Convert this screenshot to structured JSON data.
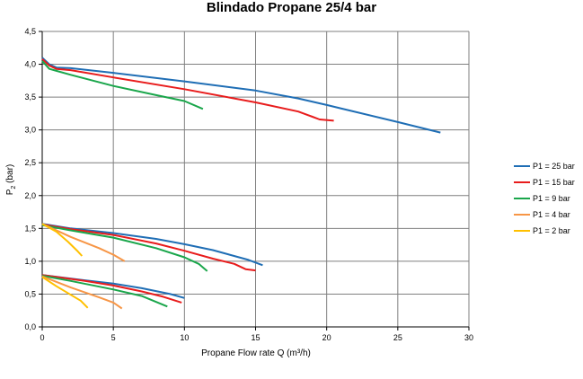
{
  "chart_data": {
    "type": "line",
    "title": "Blindado Propane 25/4 bar",
    "xlabel": "Propane Flow rate Q (m³/h)",
    "ylabel_main": "P",
    "ylabel_sub": "2",
    "ylabel_unit": " (bar)",
    "xlim": [
      0,
      30
    ],
    "ylim": [
      0,
      4.5
    ],
    "x_ticks": [
      0,
      5,
      10,
      15,
      20,
      25,
      30
    ],
    "y_ticks": [
      0,
      0.5,
      1.0,
      1.5,
      2.0,
      2.5,
      3.0,
      3.5,
      4.0,
      4.5
    ],
    "x_tick_labels": [
      "0",
      "5",
      "10",
      "15",
      "20",
      "25",
      "30"
    ],
    "y_tick_labels": [
      "0,0",
      "0,5",
      "1,0",
      "1,5",
      "2,0",
      "2,5",
      "3,0",
      "3,5",
      "4,0",
      "4,5"
    ],
    "grid": true,
    "legend_position": "right",
    "series": [
      {
        "name": "P1 = 25 bar",
        "color": "#1f6eb5",
        "groups": [
          [
            [
              0,
              4.1
            ],
            [
              0.5,
              4.0
            ],
            [
              1,
              3.95
            ],
            [
              2,
              3.94
            ],
            [
              5,
              3.87
            ],
            [
              10,
              3.74
            ],
            [
              15,
              3.6
            ],
            [
              18,
              3.48
            ],
            [
              20,
              3.38
            ],
            [
              25,
              3.12
            ],
            [
              28,
              2.96
            ]
          ],
          [
            [
              0,
              1.57
            ],
            [
              2,
              1.5
            ],
            [
              5,
              1.43
            ],
            [
              8,
              1.34
            ],
            [
              10,
              1.26
            ],
            [
              12,
              1.17
            ],
            [
              14.5,
              1.02
            ],
            [
              15.5,
              0.94
            ]
          ],
          [
            [
              0,
              0.79
            ],
            [
              3,
              0.71
            ],
            [
              5,
              0.66
            ],
            [
              7,
              0.59
            ],
            [
              9,
              0.5
            ],
            [
              10,
              0.44
            ]
          ]
        ]
      },
      {
        "name": "P1 = 15 bar",
        "color": "#e81c1c",
        "groups": [
          [
            [
              0,
              4.08
            ],
            [
              0.5,
              3.98
            ],
            [
              1,
              3.93
            ],
            [
              2,
              3.91
            ],
            [
              5,
              3.8
            ],
            [
              10,
              3.62
            ],
            [
              15,
              3.42
            ],
            [
              18,
              3.28
            ],
            [
              19,
              3.2
            ],
            [
              19.5,
              3.16
            ],
            [
              20.5,
              3.14
            ]
          ],
          [
            [
              0,
              1.56
            ],
            [
              2,
              1.49
            ],
            [
              5,
              1.4
            ],
            [
              8,
              1.27
            ],
            [
              10,
              1.16
            ],
            [
              12,
              1.04
            ],
            [
              13.5,
              0.96
            ],
            [
              14.3,
              0.88
            ],
            [
              15,
              0.86
            ]
          ],
          [
            [
              0,
              0.79
            ],
            [
              3,
              0.7
            ],
            [
              5,
              0.63
            ],
            [
              7,
              0.54
            ],
            [
              8.5,
              0.46
            ],
            [
              9.8,
              0.37
            ]
          ]
        ]
      },
      {
        "name": "P1 = 9 bar",
        "color": "#1aa64b",
        "groups": [
          [
            [
              0,
              4.05
            ],
            [
              0.5,
              3.93
            ],
            [
              1,
              3.9
            ],
            [
              2,
              3.84
            ],
            [
              5,
              3.67
            ],
            [
              8,
              3.53
            ],
            [
              10,
              3.44
            ],
            [
              11.3,
              3.32
            ]
          ],
          [
            [
              0,
              1.55
            ],
            [
              2,
              1.47
            ],
            [
              5,
              1.36
            ],
            [
              8,
              1.2
            ],
            [
              10,
              1.06
            ],
            [
              11,
              0.96
            ],
            [
              11.6,
              0.85
            ]
          ],
          [
            [
              0,
              0.78
            ],
            [
              2,
              0.7
            ],
            [
              5,
              0.57
            ],
            [
              7,
              0.47
            ],
            [
              8.8,
              0.31
            ]
          ]
        ]
      },
      {
        "name": "P1 = 4 bar",
        "color": "#f79646",
        "groups": [
          [
            [
              0,
              1.57
            ],
            [
              2,
              1.37
            ],
            [
              4,
              1.2
            ],
            [
              5,
              1.1
            ],
            [
              5.8,
              1.0
            ]
          ],
          [
            [
              0,
              0.77
            ],
            [
              2,
              0.6
            ],
            [
              4,
              0.45
            ],
            [
              5,
              0.37
            ],
            [
              5.6,
              0.28
            ]
          ]
        ]
      },
      {
        "name": "P1 = 2 bar",
        "color": "#ffc000",
        "groups": [
          [
            [
              0,
              1.57
            ],
            [
              1,
              1.45
            ],
            [
              1.8,
              1.3
            ],
            [
              2.5,
              1.15
            ],
            [
              2.8,
              1.08
            ]
          ],
          [
            [
              0,
              0.76
            ],
            [
              1,
              0.62
            ],
            [
              2,
              0.49
            ],
            [
              2.7,
              0.4
            ],
            [
              3.2,
              0.29
            ]
          ]
        ]
      }
    ]
  }
}
